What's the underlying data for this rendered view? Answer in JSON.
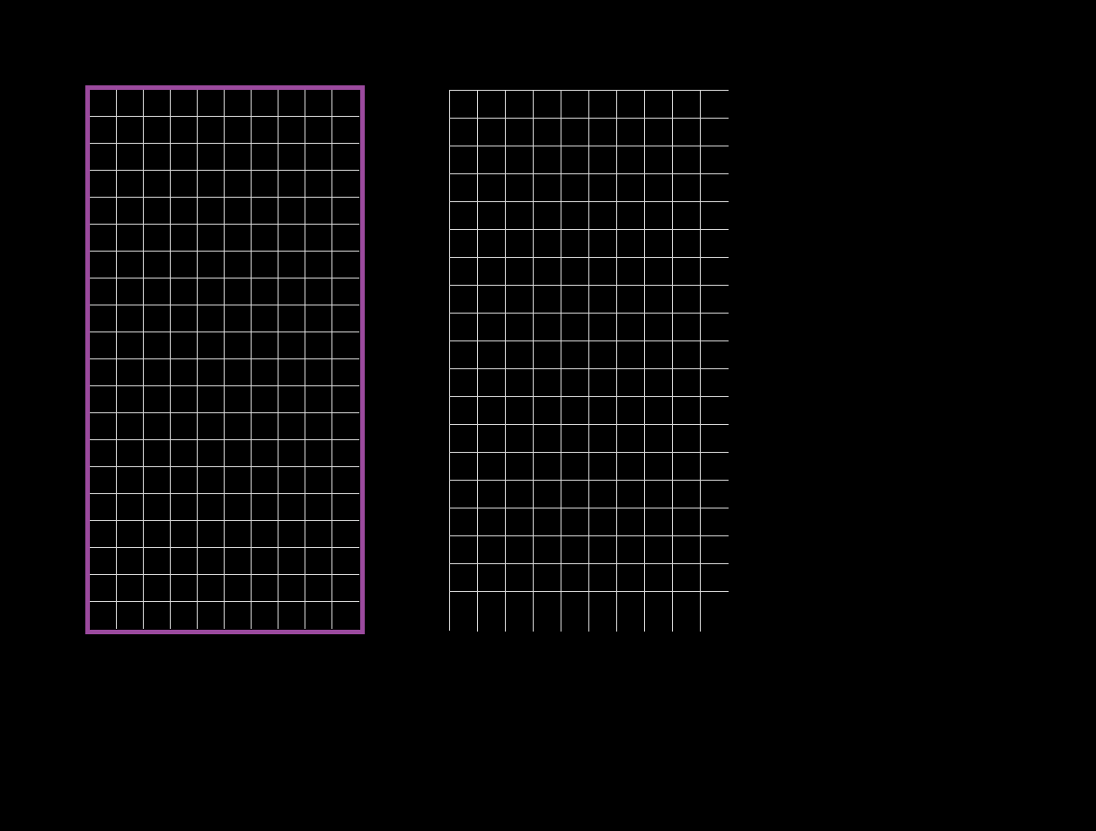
{
  "colors": {
    "background": "#000000",
    "grid_line": "#d8d8d8",
    "active_board_border": "#9b4a9e",
    "empty_cell": "#000000"
  },
  "boards": [
    {
      "id": "left",
      "active": true,
      "columns": 10,
      "rows": 20,
      "filled_cells": []
    },
    {
      "id": "right",
      "active": false,
      "columns": 10,
      "rows": 19,
      "filled_cells": []
    }
  ]
}
